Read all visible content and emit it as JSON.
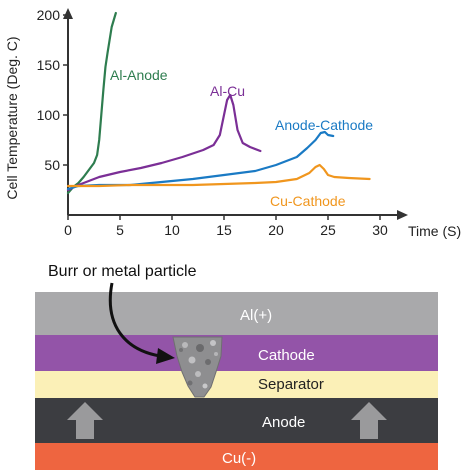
{
  "chart_data": {
    "type": "line",
    "title": "",
    "xlabel": "Time (S)",
    "ylabel": "Cell Temperature (Deg. C)",
    "xlim": [
      0,
      30
    ],
    "ylim": [
      0,
      200
    ],
    "xticks": [
      0,
      5,
      10,
      15,
      20,
      25,
      30
    ],
    "yticks": [
      50,
      100,
      150,
      200
    ],
    "grid": false,
    "series": [
      {
        "name": "Al-Anode",
        "color": "#2e7d4f",
        "x": [
          0,
          0.5,
          1,
          1.5,
          2,
          2.5,
          2.8,
          3.0,
          3.2,
          3.4,
          3.6,
          3.8,
          4.0,
          4.2,
          4.4,
          4.6
        ],
        "y": [
          22,
          28,
          32,
          38,
          45,
          52,
          60,
          75,
          100,
          125,
          148,
          162,
          175,
          188,
          195,
          202
        ]
      },
      {
        "name": "Al-Cu",
        "color": "#7b2f96",
        "x": [
          0,
          1,
          2,
          3,
          5,
          7,
          9,
          11,
          13,
          14,
          14.6,
          15.0,
          15.3,
          15.6,
          15.9,
          16.3,
          16.8,
          17.5,
          18.5
        ],
        "y": [
          25,
          30,
          34,
          38,
          43,
          47,
          52,
          58,
          65,
          70,
          80,
          100,
          115,
          120,
          110,
          85,
          72,
          68,
          64
        ]
      },
      {
        "name": "Anode-Cathode",
        "color": "#1a7ac4",
        "x": [
          0,
          1,
          3,
          6,
          9,
          12,
          15,
          18,
          20,
          22,
          23,
          23.8,
          24.3,
          24.7,
          25.0,
          25.5
        ],
        "y": [
          26,
          29,
          30,
          30,
          33,
          36,
          40,
          44,
          50,
          58,
          67,
          75,
          82,
          83,
          80,
          79
        ]
      },
      {
        "name": "Cu-Cathode",
        "color": "#f0961e",
        "x": [
          0,
          1,
          3,
          6,
          9,
          12,
          15,
          18,
          20,
          22,
          23.2,
          23.8,
          24.2,
          24.6,
          25.0,
          25.6,
          27,
          29
        ],
        "y": [
          29,
          29,
          29,
          30,
          30,
          30,
          31,
          32,
          33,
          36,
          42,
          48,
          50,
          46,
          40,
          38,
          37,
          36
        ]
      }
    ]
  },
  "diagram": {
    "callout": "Burr or metal particle",
    "layers": [
      {
        "name": "al",
        "label": "Al(+)",
        "color": "#a9a9ab"
      },
      {
        "name": "cathode",
        "label": "Cathode",
        "color": "#9354a8"
      },
      {
        "name": "separator",
        "label": "Separator",
        "color": "#fbf0b7"
      },
      {
        "name": "anode",
        "label": "Anode",
        "color": "#3c3d41"
      },
      {
        "name": "cu",
        "label": "Cu(-)",
        "color": "#ee6540"
      }
    ]
  }
}
